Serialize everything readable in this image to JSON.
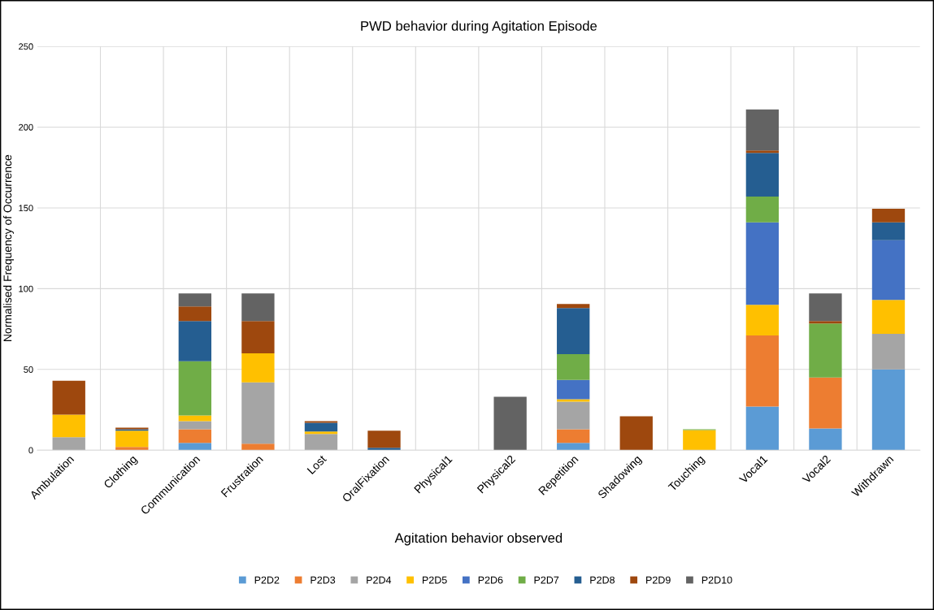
{
  "chart_data": {
    "type": "bar",
    "stacked": true,
    "title": "PWD behavior during Agitation Episode",
    "xlabel": "Agitation behavior observed",
    "ylabel": "Normalised Frequency of Occurrence",
    "categories": [
      "Ambulation",
      "Clothing",
      "Communication",
      "Frustration",
      "Lost",
      "OralFixation",
      "Physical1",
      "Physical2",
      "Repetition",
      "Shadowing",
      "Touching",
      "Vocal1",
      "Vocal2",
      "Withdrawn"
    ],
    "series": [
      {
        "name": "P2D2",
        "color": "#5b9bd5",
        "values": [
          0,
          0,
          4.5,
          0,
          0,
          0,
          0,
          0,
          4.5,
          0,
          0,
          27,
          13.5,
          50
        ]
      },
      {
        "name": "P2D3",
        "color": "#ed7d31",
        "values": [
          0,
          2,
          8.5,
          4,
          0,
          0,
          0,
          0,
          8.5,
          0,
          0,
          44,
          31.5,
          0
        ]
      },
      {
        "name": "P2D4",
        "color": "#a5a5a5",
        "values": [
          8,
          0,
          5,
          38,
          10,
          0,
          0,
          0,
          17,
          0,
          0,
          0,
          0,
          22
        ]
      },
      {
        "name": "P2D5",
        "color": "#ffc000",
        "values": [
          14,
          10,
          3.5,
          18,
          1.5,
          0,
          0,
          0,
          1.5,
          0,
          12.5,
          19,
          0,
          21
        ]
      },
      {
        "name": "P2D6",
        "color": "#4472c4",
        "values": [
          0,
          0,
          0,
          0,
          0,
          0,
          0,
          0,
          12,
          0,
          0,
          51,
          0,
          37
        ]
      },
      {
        "name": "P2D7",
        "color": "#70ad47",
        "values": [
          0,
          0,
          33.5,
          0,
          0,
          0,
          0,
          0,
          16,
          0,
          0.5,
          16,
          33.5,
          0
        ]
      },
      {
        "name": "P2D8",
        "color": "#255e91",
        "values": [
          0,
          1,
          25,
          0,
          5.5,
          1.5,
          0,
          0,
          28.5,
          0,
          0,
          27,
          0,
          11
        ]
      },
      {
        "name": "P2D9",
        "color": "#9e480e",
        "values": [
          21,
          1,
          9,
          20,
          1,
          10.5,
          0,
          0,
          2.5,
          21,
          0,
          1.5,
          1.5,
          8.5
        ]
      },
      {
        "name": "P2D10",
        "color": "#636363",
        "values": [
          0,
          0,
          8,
          17,
          0,
          0,
          0,
          33,
          0,
          0,
          0,
          25.5,
          17,
          0
        ]
      }
    ],
    "ylim": [
      0,
      250
    ],
    "yticks": [
      0,
      50,
      100,
      150,
      200,
      250
    ],
    "grid": true,
    "legend": "bottom"
  }
}
